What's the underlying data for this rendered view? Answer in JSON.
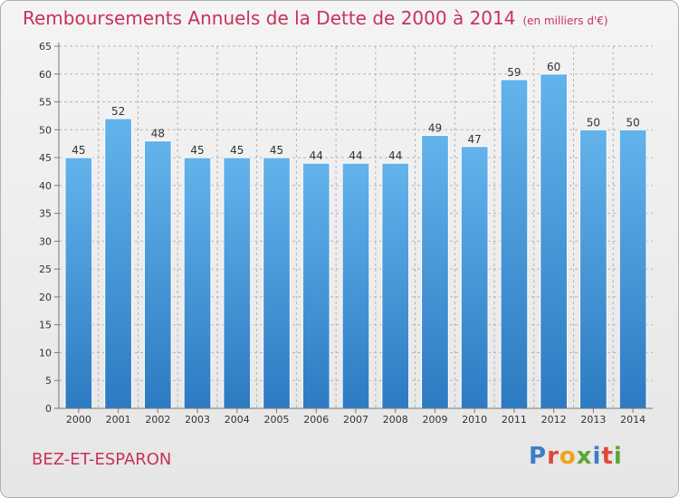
{
  "header": {
    "title": "Remboursements Annuels de la Dette de 2000 à 2014",
    "subtitle": "(en milliers d'€)"
  },
  "footer": {
    "commune": "BEZ-ET-ESPARON",
    "logo_text": "Proxiti"
  },
  "colors": {
    "title": "#c8325a",
    "bar_light": "#63b3ec",
    "bar_dark": "#2c7bc2",
    "grid": "#b5b5b5",
    "axis_text": "#333333"
  },
  "chart_data": {
    "type": "bar",
    "title": "Remboursements Annuels de la Dette de 2000 à 2014",
    "subtitle": "(en milliers d'€)",
    "categories": [
      "2000",
      "2001",
      "2002",
      "2003",
      "2004",
      "2005",
      "2006",
      "2007",
      "2008",
      "2009",
      "2010",
      "2011",
      "2012",
      "2013",
      "2014"
    ],
    "values": [
      45,
      52,
      48,
      45,
      45,
      45,
      44,
      44,
      44,
      49,
      47,
      59,
      60,
      50,
      50
    ],
    "xlabel": "",
    "ylabel": "",
    "ylim": [
      0,
      65
    ],
    "yticks": [
      0,
      5,
      10,
      15,
      20,
      25,
      30,
      35,
      40,
      45,
      50,
      55,
      60,
      65
    ],
    "grid": true,
    "data_labels": true
  }
}
